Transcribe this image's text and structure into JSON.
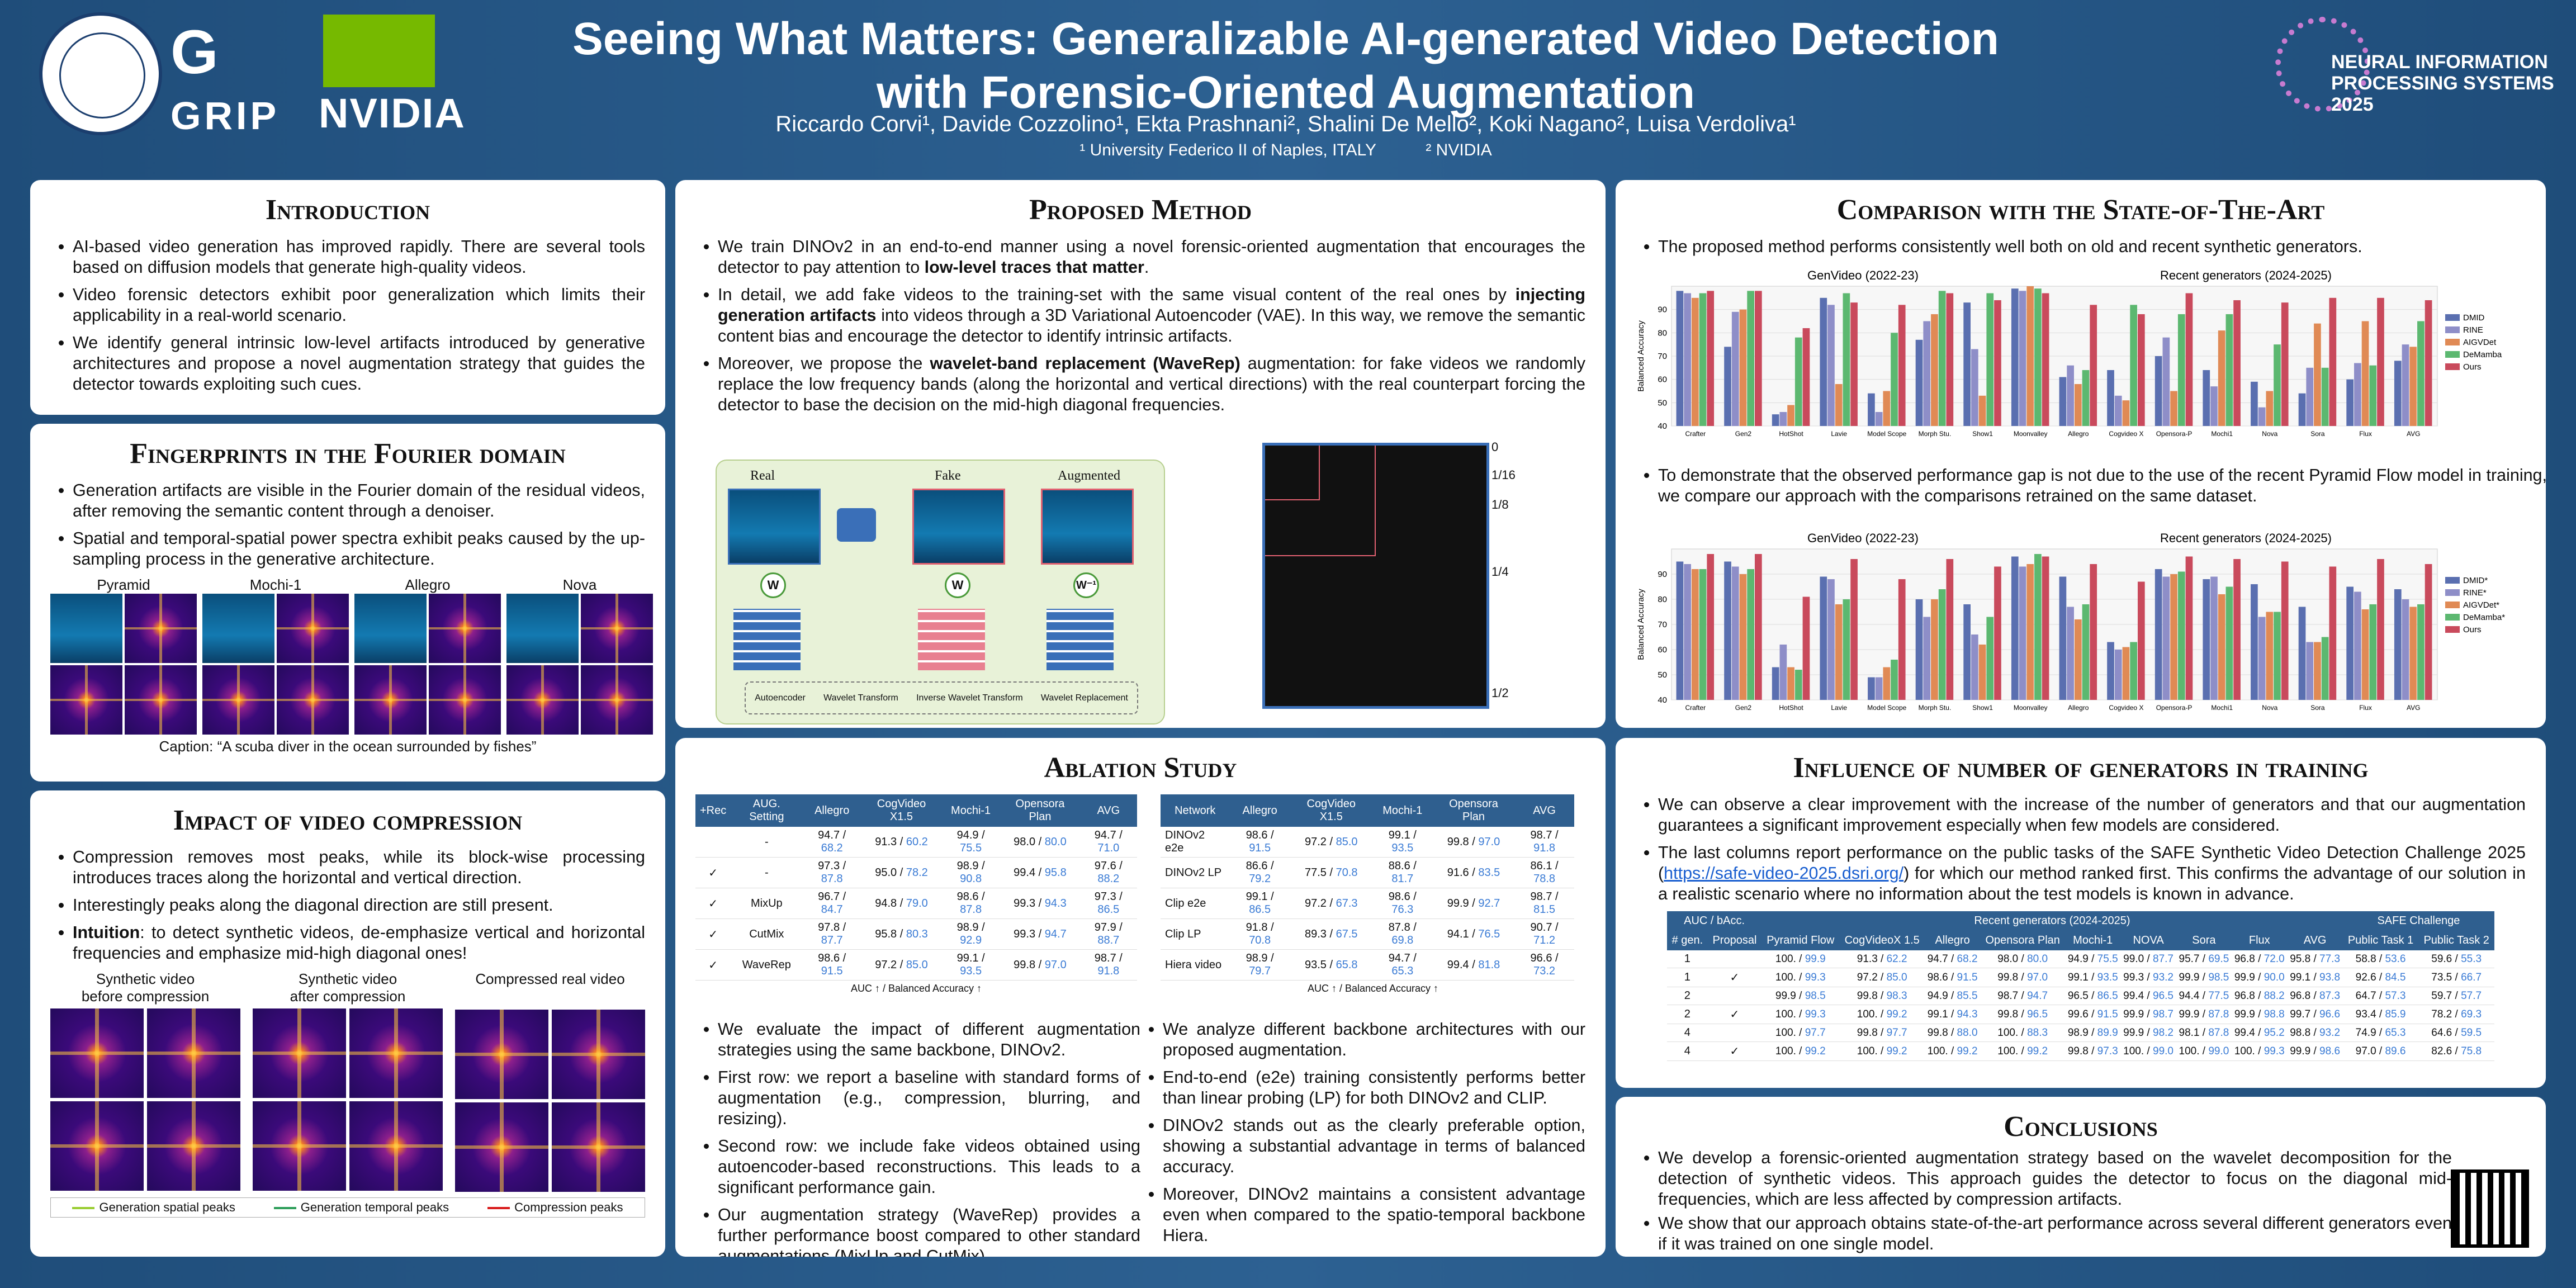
{
  "header": {
    "title_line1": "Seeing What Matters: Generalizable AI-generated Video Detection",
    "title_line2": "with Forensic-Oriented Augmentation",
    "authors": "Riccardo Corvi¹, Davide Cozzolino¹, Ekta Prashnani², Shalini De Mello², Koki Nagano², Luisa Verdoliva¹",
    "affil1": "¹ University Federico II of Naples, ITALY",
    "affil2": "² NVIDIA",
    "logo_grip_top": "G",
    "logo_grip_bottom": "GRIP",
    "logo_nvidia": "NVIDIA",
    "neurips_line1": "NEURAL INFORMATION",
    "neurips_line2": "PROCESSING SYSTEMS",
    "neurips_year": "2025"
  },
  "intro": {
    "title": "Introduction",
    "bullets": [
      "AI-based video generation has improved rapidly. There are several tools based on diffusion models that generate high-quality videos.",
      "Video forensic detectors exhibit poor generalization which limits their applicability in a real-world scenario.",
      "We identify general intrinsic low-level artifacts introduced by generative architectures and propose a novel augmentation strategy that guides the detector towards exploiting such cues."
    ]
  },
  "fourier": {
    "title": "Fingerprints in the Fourier domain",
    "bullets": [
      "Generation artifacts are visible in the Fourier domain of the residual videos, after removing the semantic content through a denoiser.",
      "Spatial and temporal-spatial power spectra exhibit peaks caused by the up-sampling process in the generative architecture."
    ],
    "labels": [
      "Pyramid",
      "Mochi-1",
      "Allegro",
      "Nova"
    ],
    "caption": "Caption: “A scuba diver in the ocean surrounded by fishes”"
  },
  "compression": {
    "title": "Impact of video compression",
    "b1": "Compression removes most peaks, while its block-wise processing introduces traces along the horizontal and vertical direction.",
    "b2": "Interestingly peaks along the diagonal direction are still present.",
    "b3_strong": "Intuition",
    "b3_rest": ": to detect synthetic videos, de-emphasize vertical and horizontal frequencies and emphasize mid-high diagonal ones!",
    "col1a": "Synthetic video",
    "col1b": "before compression",
    "col2a": "Synthetic video",
    "col2b": "after compression",
    "col3": "Compressed real video",
    "legend": [
      "Generation spatial peaks",
      "Generation temporal peaks",
      "Compression peaks"
    ]
  },
  "method": {
    "title": "Proposed Method",
    "b1_pre": "We train DINOv2 in an end-to-end manner using a novel forensic-oriented augmentation that encourages the detector to pay attention to ",
    "b1_strong": "low-level traces that matter",
    "b1_post": ".",
    "b2_pre": "In detail, we add fake videos to the training-set with the same visual content of the real ones by ",
    "b2_strong": "injecting generation artifacts",
    "b2_post": " into videos through a 3D Variational Autoencoder (VAE). In this way, we remove the semantic content bias and encourage the detector to identify intrinsic artifacts.",
    "b3_pre": "Moreover, we propose the ",
    "b3_strong": "wavelet-band replacement (WaveRep)",
    "b3_post": " augmentation: for fake videos we randomly replace the low frequency bands (along the horizontal and vertical directions) with the real counterpart forcing the detector to base the decision on the mid-high diagonal frequencies.",
    "diag_real": "Real",
    "diag_fake": "Fake",
    "diag_aug": "Augmented",
    "w": "W",
    "winv": "W⁻¹",
    "leg_ae": "Autoencoder",
    "leg_wt1": "Wavelet",
    "leg_wt2": "Transform",
    "leg_iwt1": "Inverse Wavelet",
    "leg_iwt2": "Transform",
    "leg_wr1": "Wavelet",
    "leg_wr2": "Replacement",
    "scale": [
      "0",
      "1/16",
      "1/8",
      "1/4",
      "1/2"
    ]
  },
  "ablation": {
    "title": "Ablation Study",
    "t1_head": [
      "+Rec",
      "AUG. Setting",
      "Allegro",
      "CogVideo X1.5",
      "Mochi-1",
      "Opensora Plan",
      "AVG"
    ],
    "t1_rows": [
      [
        "",
        "-",
        "94.7",
        "68.2",
        "91.3",
        "60.2",
        "94.9",
        "75.5",
        "98.0",
        "80.0",
        "94.7",
        "71.0"
      ],
      [
        "✓",
        "-",
        "97.3",
        "87.8",
        "95.0",
        "78.2",
        "98.9",
        "90.8",
        "99.4",
        "95.8",
        "97.6",
        "88.2"
      ],
      [
        "✓",
        "MixUp",
        "96.7",
        "84.7",
        "94.8",
        "79.0",
        "98.6",
        "87.8",
        "99.3",
        "94.3",
        "97.3",
        "86.5"
      ],
      [
        "✓",
        "CutMix",
        "97.8",
        "87.7",
        "95.8",
        "80.3",
        "98.9",
        "92.9",
        "99.3",
        "94.7",
        "97.9",
        "88.7"
      ],
      [
        "✓",
        "WaveRep",
        "98.6",
        "91.5",
        "97.2",
        "85.0",
        "99.1",
        "93.5",
        "99.8",
        "97.0",
        "98.7",
        "91.8"
      ]
    ],
    "t2_head": [
      "Network",
      "Allegro",
      "CogVideo X1.5",
      "Mochi-1",
      "Opensora Plan",
      "AVG"
    ],
    "t2_rows": [
      [
        "DINOv2 e2e",
        "98.6",
        "91.5",
        "97.2",
        "85.0",
        "99.1",
        "93.5",
        "99.8",
        "97.0",
        "98.7",
        "91.8"
      ],
      [
        "DINOv2 LP",
        "86.6",
        "79.2",
        "77.5",
        "70.8",
        "88.6",
        "81.7",
        "91.6",
        "83.5",
        "86.1",
        "78.8"
      ],
      [
        "Clip e2e",
        "99.1",
        "86.5",
        "97.2",
        "67.3",
        "98.6",
        "76.3",
        "99.9",
        "92.7",
        "98.7",
        "81.5"
      ],
      [
        "Clip LP",
        "91.8",
        "70.8",
        "89.3",
        "67.5",
        "87.8",
        "69.8",
        "94.1",
        "76.5",
        "90.7",
        "71.2"
      ],
      [
        "Hiera video",
        "98.9",
        "79.7",
        "93.5",
        "65.8",
        "94.7",
        "65.3",
        "99.4",
        "81.8",
        "96.6",
        "73.2"
      ]
    ],
    "note_auc": "AUC ↑ /",
    "note_bacc": "Balanced Accuracy ↑",
    "left_bullets": [
      "We evaluate the impact of different augmentation strategies using the same backbone, DINOv2.",
      "First row: we report a baseline with standard forms of augmentation (e.g., compression, blurring, and resizing).",
      "Second row: we include fake videos obtained using autoencoder-based reconstructions. This leads to a significant performance gain.",
      "Our augmentation strategy (WaveRep) provides a further performance boost compared to other standard augmentations (MixUp and CutMix)."
    ],
    "right_bullets": [
      "We analyze different backbone architectures with our proposed augmentation.",
      "End-to-end (e2e) training consistently performs better than linear probing (LP) for both DINOv2 and CLIP.",
      "DINOv2 stands out as the clearly preferable option, showing a substantial advantage in terms of balanced accuracy.",
      "Moreover, DINOv2 maintains a consistent advantage even when compared to the spatio-temporal backbone Hiera."
    ]
  },
  "sota": {
    "title": "Comparison with the State-of-The-Art",
    "b1": "The proposed method performs consistently well both on old and recent synthetic generators.",
    "b2": "To demonstrate that the observed performance gap is not due to the use of the recent Pyramid Flow model in training, we compare our approach with the comparisons retrained on the same dataset."
  },
  "chart_data": [
    {
      "type": "bar",
      "ylabel": "Balanced Accuracy",
      "ylim": [
        40,
        100
      ],
      "yticks": [
        40,
        50,
        60,
        70,
        80,
        90
      ],
      "group_left": "GenVideo (2022-23)",
      "group_right": "Recent generators (2024-2025)",
      "categories": [
        "Crafter",
        "Gen2",
        "HotShot",
        "Lavie",
        "Model Scope",
        "Morph Stu.",
        "Show1",
        "Moonvalley",
        "Allegro",
        "Cogvideo X",
        "Opensora-P",
        "Mochi1",
        "Nova",
        "Sora",
        "Flux",
        "AVG"
      ],
      "series": [
        {
          "name": "DMID",
          "color": "#5a6fb0",
          "values": [
            98,
            74,
            45,
            95,
            54,
            77,
            93,
            99,
            61,
            64,
            70,
            64,
            59,
            54,
            60,
            68
          ]
        },
        {
          "name": "RINE",
          "color": "#8e8ec8",
          "values": [
            97,
            89,
            46,
            92,
            46,
            85,
            73,
            98,
            66,
            53,
            78,
            57,
            48,
            65,
            67,
            75
          ]
        },
        {
          "name": "AIGVDet",
          "color": "#e08a55",
          "values": [
            95,
            90,
            49,
            58,
            55,
            88,
            53,
            100,
            58,
            51,
            55,
            81,
            55,
            84,
            85,
            74
          ]
        },
        {
          "name": "DeMamba",
          "color": "#5cb870",
          "values": [
            97,
            98,
            78,
            97,
            80,
            98,
            97,
            99,
            64,
            92,
            88,
            88,
            75,
            65,
            66,
            85
          ]
        },
        {
          "name": "Ours",
          "color": "#c94a5c",
          "values": [
            98,
            98,
            82,
            93,
            92,
            97,
            94,
            97,
            92,
            88,
            97,
            94,
            93,
            95,
            95,
            94
          ]
        }
      ]
    },
    {
      "type": "bar",
      "ylabel": "Balanced Accuracy",
      "ylim": [
        40,
        100
      ],
      "yticks": [
        40,
        50,
        60,
        70,
        80,
        90
      ],
      "group_left": "GenVideo (2022-23)",
      "group_right": "Recent generators (2024-2025)",
      "categories": [
        "Crafter",
        "Gen2",
        "HotShot",
        "Lavie",
        "Model Scope",
        "Morph Stu.",
        "Show1",
        "Moonvalley",
        "Allegro",
        "Cogvideo X",
        "Opensora-P",
        "Mochi1",
        "Nova",
        "Sora",
        "Flux",
        "AVG"
      ],
      "series": [
        {
          "name": "DMID*",
          "color": "#5a6fb0",
          "values": [
            95,
            95,
            53,
            89,
            49,
            80,
            78,
            97,
            89,
            63,
            92,
            88,
            86,
            77,
            85,
            84
          ]
        },
        {
          "name": "RINE*",
          "color": "#8e8ec8",
          "values": [
            94,
            93,
            62,
            88,
            49,
            73,
            66,
            93,
            77,
            60,
            89,
            89,
            73,
            63,
            83,
            80
          ]
        },
        {
          "name": "AIGVDet*",
          "color": "#e08a55",
          "values": [
            92,
            90,
            53,
            78,
            53,
            80,
            62,
            94,
            72,
            61,
            90,
            82,
            75,
            63,
            76,
            77
          ]
        },
        {
          "name": "DeMamba*",
          "color": "#5cb870",
          "values": [
            92,
            92,
            52,
            80,
            56,
            84,
            73,
            98,
            78,
            63,
            91,
            85,
            75,
            65,
            78,
            78
          ]
        },
        {
          "name": "Ours",
          "color": "#c94a5c",
          "values": [
            98,
            98,
            81,
            96,
            88,
            96,
            93,
            97,
            94,
            87,
            97,
            96,
            95,
            93,
            96,
            94
          ]
        }
      ]
    }
  ],
  "generators": {
    "title": "Influence of number of generators in training",
    "b1": "We can observe a clear improvement with the increase of the number of generators and that our augmentation guarantees a significant improvement especially when few models are considered.",
    "b2_pre": "The last columns report performance on the public tasks of the SAFE Synthetic Video Detection Challenge 2025 (",
    "b2_link": "https://safe-video-2025.dsri.org/",
    "b2_post": ") for which our method ranked first. This confirms the advantage of our solution in a realistic scenario where no information about the test models is known in advance.",
    "hdr_left": "AUC / bAcc.",
    "hdr_recent": "Recent generators (2024-2025)",
    "hdr_safe": "SAFE Challenge",
    "cols": [
      "# gen.",
      "Proposal",
      "Pyramid Flow",
      "CogVideoX 1.5",
      "Allegro",
      "Opensora Plan",
      "Mochi-1",
      "NOVA",
      "Sora",
      "Flux",
      "AVG",
      "Public Task 1",
      "Public Task 2"
    ],
    "rows": [
      [
        "1",
        "",
        "100.",
        "99.9",
        "91.3",
        "62.2",
        "94.7",
        "68.2",
        "98.0",
        "80.0",
        "94.9",
        "75.5",
        "99.0",
        "87.7",
        "95.7",
        "69.5",
        "96.8",
        "72.0",
        "95.8",
        "77.3",
        "58.8",
        "53.6",
        "59.6",
        "55.3"
      ],
      [
        "1",
        "✓",
        "100.",
        "99.3",
        "97.2",
        "85.0",
        "98.6",
        "91.5",
        "99.8",
        "97.0",
        "99.1",
        "93.5",
        "99.3",
        "93.2",
        "99.9",
        "98.5",
        "99.9",
        "90.0",
        "99.1",
        "93.8",
        "92.6",
        "84.5",
        "73.5",
        "66.7"
      ],
      [
        "2",
        "",
        "99.9",
        "98.5",
        "99.8",
        "98.3",
        "94.9",
        "85.5",
        "98.7",
        "94.7",
        "96.5",
        "86.5",
        "99.4",
        "96.5",
        "94.4",
        "77.5",
        "96.8",
        "88.2",
        "96.8",
        "87.3",
        "64.7",
        "57.3",
        "59.7",
        "57.7"
      ],
      [
        "2",
        "✓",
        "100.",
        "99.3",
        "100.",
        "99.2",
        "99.1",
        "94.3",
        "99.8",
        "96.5",
        "99.6",
        "91.5",
        "99.9",
        "98.7",
        "99.9",
        "87.8",
        "99.9",
        "98.8",
        "99.7",
        "96.6",
        "93.4",
        "85.9",
        "78.2",
        "69.3"
      ],
      [
        "4",
        "",
        "100.",
        "97.7",
        "99.8",
        "97.7",
        "99.8",
        "88.0",
        "100.",
        "88.3",
        "98.9",
        "89.9",
        "99.9",
        "98.2",
        "98.1",
        "87.8",
        "99.4",
        "95.2",
        "98.8",
        "93.2",
        "74.9",
        "65.3",
        "64.6",
        "59.5"
      ],
      [
        "4",
        "✓",
        "100.",
        "99.2",
        "100.",
        "99.2",
        "100.",
        "99.2",
        "100.",
        "99.2",
        "99.8",
        "97.3",
        "100.",
        "99.0",
        "100.",
        "99.0",
        "100.",
        "99.3",
        "99.9",
        "98.6",
        "97.0",
        "89.6",
        "82.6",
        "75.8"
      ]
    ]
  },
  "conclusions": {
    "title": "Conclusions",
    "b1": "We develop a forensic-oriented augmentation strategy based on the wavelet decomposition for the detection of synthetic videos. This approach guides the detector to focus on the diagonal mid-frequencies, which are less affected by compression artifacts.",
    "b2": "We show that our approach obtains state-of-the-art performance across several different generators even if it was trained on one single model."
  }
}
